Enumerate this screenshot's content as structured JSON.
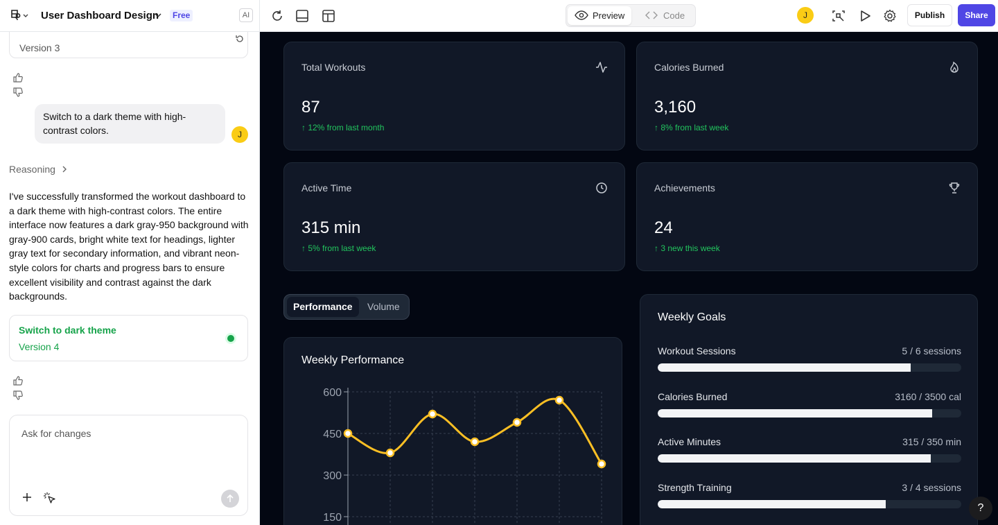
{
  "header": {
    "project_title": "User Dashboard Design",
    "plan_badge": "Free",
    "ai_badge": "AI",
    "view_modes": {
      "preview": "Preview",
      "code": "Code"
    },
    "user_initial": "J",
    "publish_label": "Publish",
    "share_label": "Share",
    "accent_color": "#4f46e5"
  },
  "chat": {
    "previous_version": "Version 3",
    "user_message": "Switch to a dark theme with high-contrast colors.",
    "user_initial": "J",
    "reasoning_label": "Reasoning",
    "assistant_reply": "I've successfully transformed the workout dashboard to a dark theme with high-contrast colors. The entire interface now features a dark gray-950 background with gray-900 cards, bright white text for headings, lighter gray text for secondary information, and vibrant neon-style colors for charts and progress bars to ensure excellent visibility and contrast against the dark backgrounds.",
    "active_version": {
      "name": "Switch to dark theme",
      "label": "Version 4",
      "color": "#16a34a"
    },
    "input_placeholder": "Ask for changes"
  },
  "dashboard": {
    "stats": [
      {
        "title": "Total Workouts",
        "value": "87",
        "change": "↑ 12% from last month",
        "icon": "activity-icon"
      },
      {
        "title": "Calories Burned",
        "value": "3,160",
        "change": "↑ 8% from last week",
        "icon": "flame-icon"
      },
      {
        "title": "Active Time",
        "value": "315 min",
        "change": "↑ 5% from last week",
        "icon": "clock-icon"
      },
      {
        "title": "Achievements",
        "value": "24",
        "change": "↑ 3 new this week",
        "icon": "trophy-icon"
      }
    ],
    "tabs": {
      "performance": "Performance",
      "volume": "Volume"
    },
    "chart_title": "Weekly Performance",
    "goals_title": "Weekly Goals",
    "goals": [
      {
        "name": "Workout Sessions",
        "value": "5 / 6 sessions",
        "progress": 0.833
      },
      {
        "name": "Calories Burned",
        "value": "3160 / 3500 cal",
        "progress": 0.903
      },
      {
        "name": "Active Minutes",
        "value": "315 / 350 min",
        "progress": 0.9
      },
      {
        "name": "Strength Training",
        "value": "3 / 4 sessions",
        "progress": 0.75
      }
    ],
    "help_label": "?"
  },
  "chart_data": {
    "type": "line",
    "title": "Weekly Performance",
    "x": [
      1,
      2,
      3,
      4,
      5,
      6,
      7
    ],
    "series": [
      {
        "values": [
          450,
          380,
          520,
          420,
          490,
          570,
          340
        ],
        "color": "#fbbf24"
      }
    ],
    "yticks": [
      150,
      300,
      450,
      600
    ],
    "ylim": [
      120,
      610
    ],
    "grid": true
  }
}
